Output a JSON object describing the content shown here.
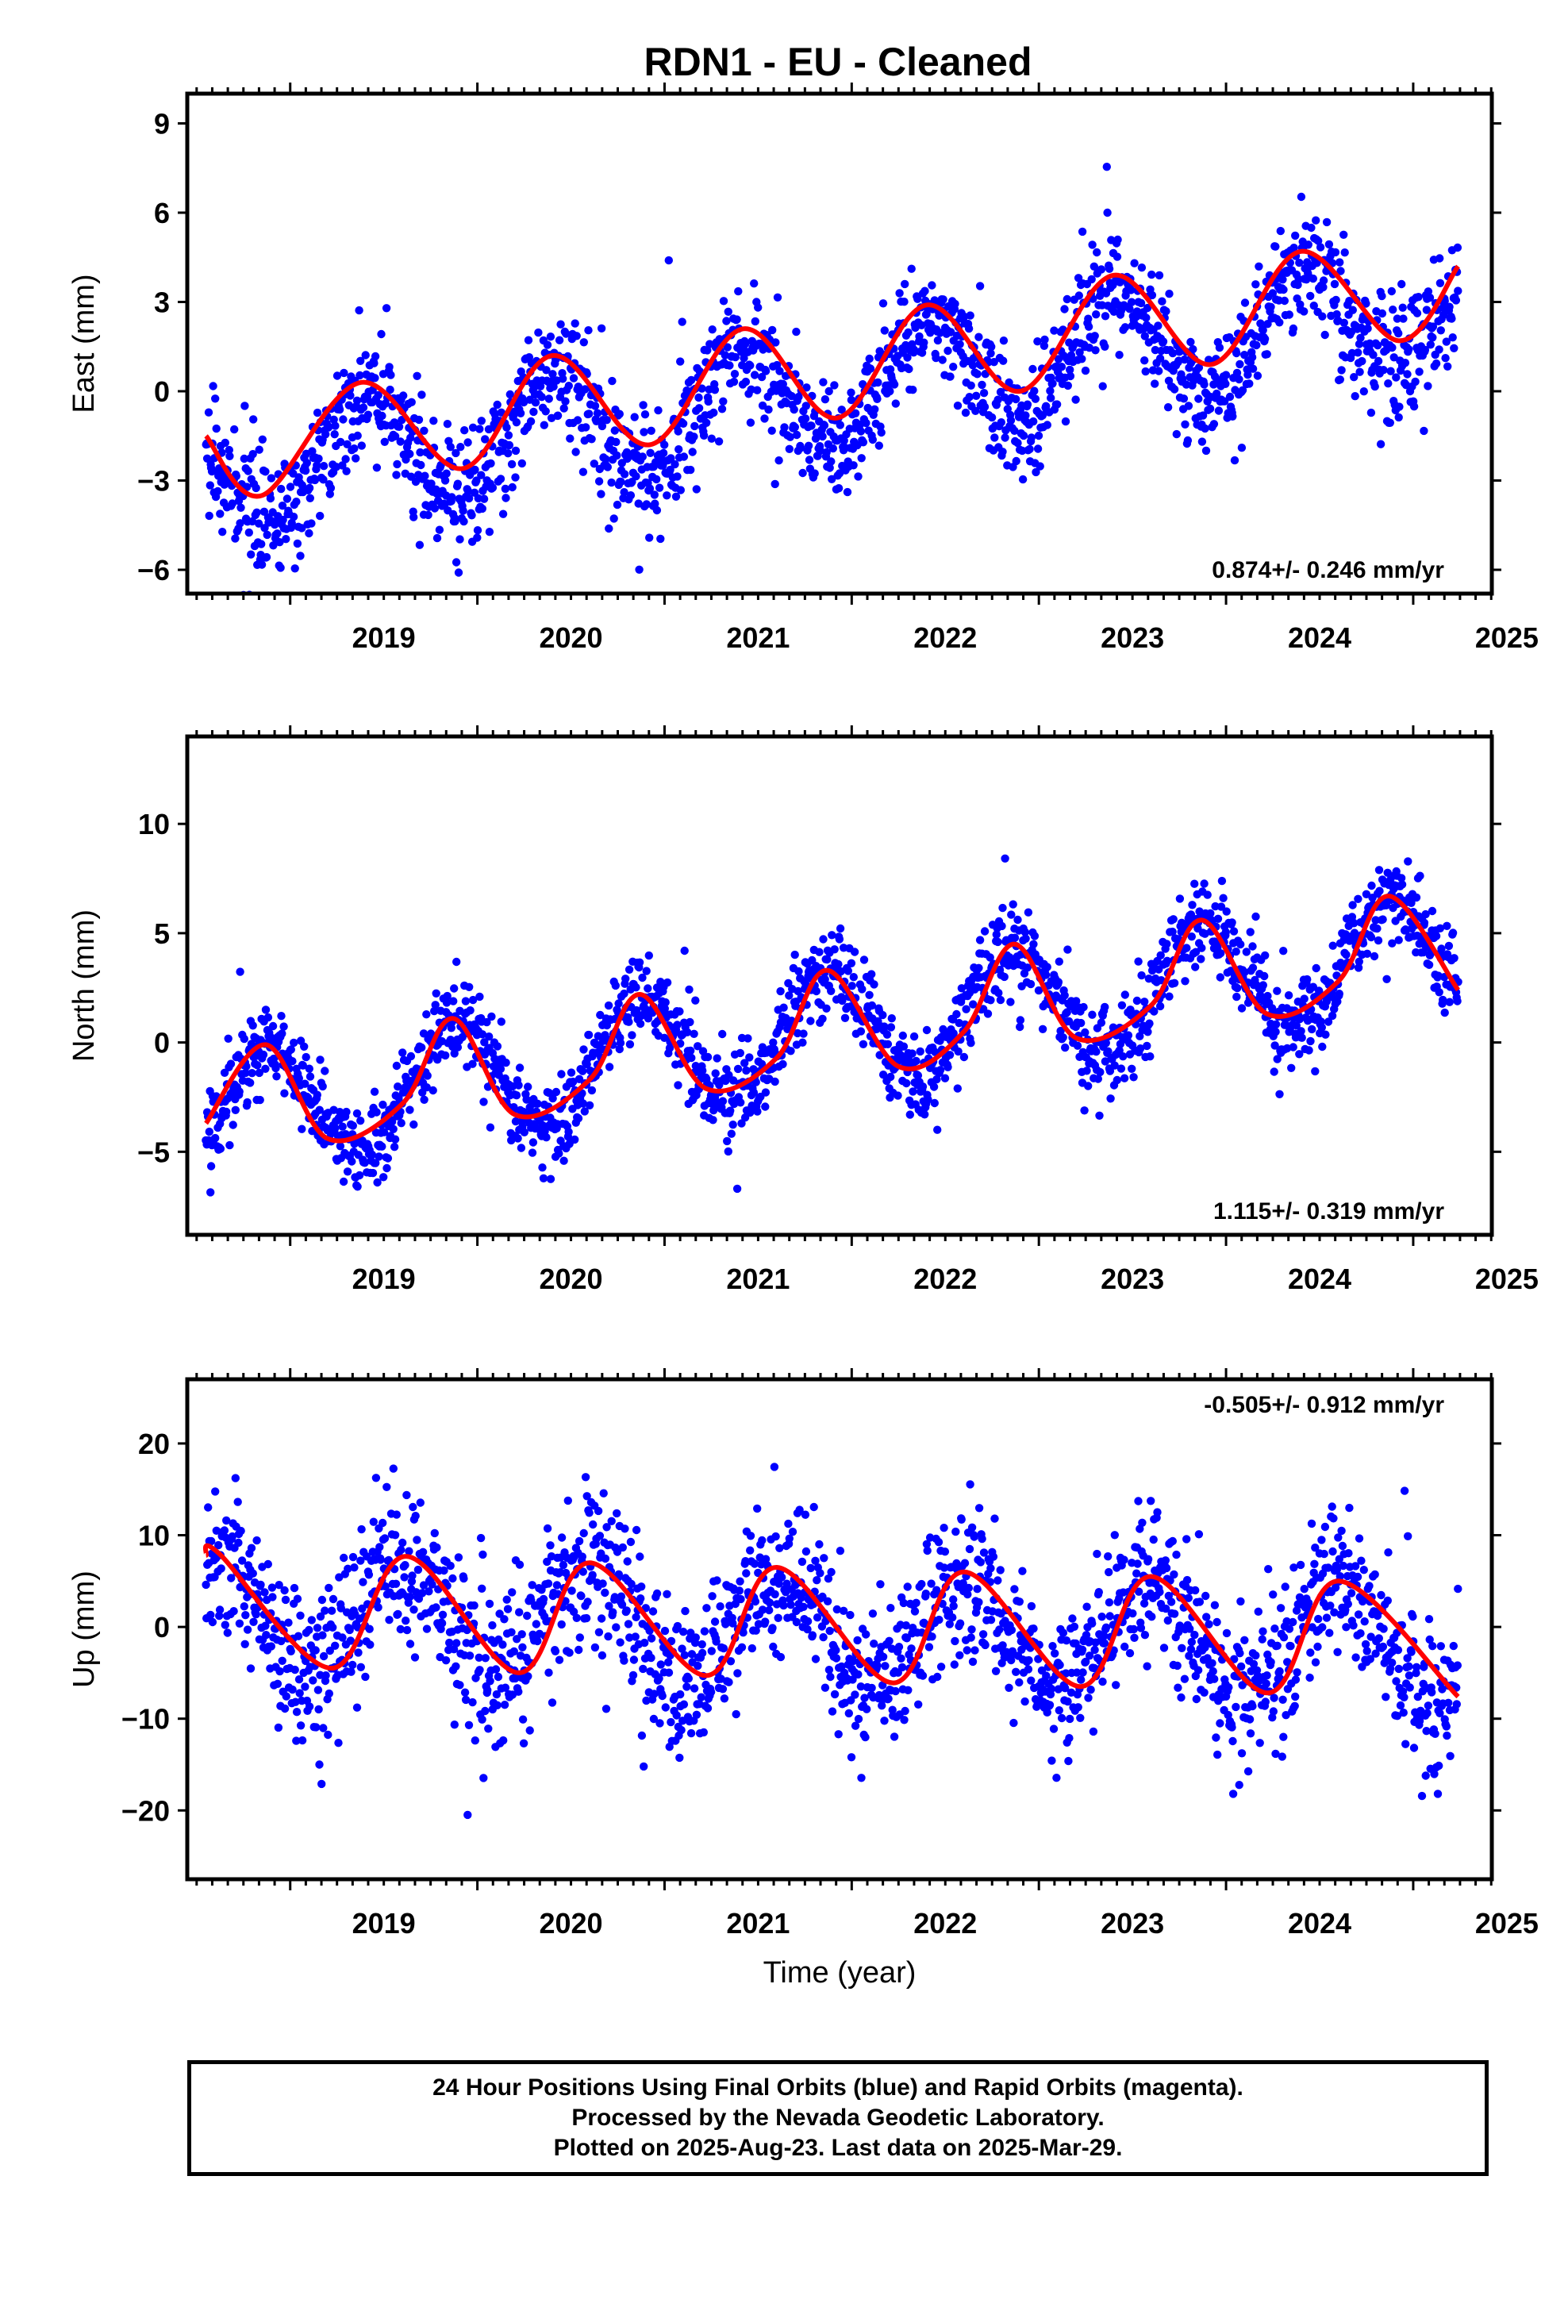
{
  "title": "RDN1  - EU - Cleaned",
  "colors": {
    "final_orbits": "#0000ff",
    "model_fit": "#ff0000",
    "axis": "#000000"
  },
  "footer": {
    "line1": "24 Hour Positions Using Final Orbits (blue) and Rapid Orbits (magenta).",
    "line2": "Processed by the Nevada Geodetic Laboratory.",
    "line3": "Plotted on 2025-Aug-23. Last data on 2025-Mar-29."
  },
  "chart_data": [
    {
      "type": "scatter",
      "ylabel": "East (mm)",
      "xlabel": "",
      "rate": "0.874+/- 0.246 mm/yr",
      "rate_position": "bottom-right",
      "xlim": [
        2018.45,
        2025.42
      ],
      "ylim": [
        -6.8,
        10.0
      ],
      "xticks": [
        2019,
        2020,
        2021,
        2022,
        2023,
        2024,
        2025
      ],
      "yticks": [
        -6,
        -3,
        0,
        3,
        6,
        9
      ],
      "grid": false,
      "series": [
        {
          "kind": "scatter",
          "color": "#0000ff",
          "trend_start": -2.9,
          "trend_rate": 0.874,
          "annual_amplitude": 1.9,
          "annual_phase": 2019.4,
          "scatter_sd": 1.0,
          "n_points": 1900,
          "date_range": [
            2018.55,
            2025.24
          ]
        },
        {
          "kind": "line",
          "color": "#ff0000",
          "x": [
            2018.55,
            2018.85,
            2019.38,
            2019.92,
            2020.4,
            2020.92,
            2021.42,
            2021.92,
            2022.4,
            2022.9,
            2023.4,
            2023.92,
            2024.4,
            2024.92,
            2025.24
          ],
          "y": [
            -1.5,
            -3.5,
            0.3,
            -2.6,
            1.2,
            -1.8,
            2.1,
            -0.9,
            2.9,
            0.0,
            3.9,
            0.9,
            4.7,
            1.7,
            4.2
          ]
        }
      ]
    },
    {
      "type": "scatter",
      "ylabel": "North (mm)",
      "xlabel": "",
      "rate": "1.115+/- 0.319 mm/yr",
      "rate_position": "bottom-right",
      "xlim": [
        2018.45,
        2025.42
      ],
      "ylim": [
        -8.8,
        14.0
      ],
      "xticks": [
        2019,
        2020,
        2021,
        2022,
        2023,
        2024,
        2025
      ],
      "yticks": [
        -5,
        0,
        5,
        10
      ],
      "grid": false,
      "series": [
        {
          "kind": "scatter",
          "color": "#0000ff",
          "trend_start": -3.2,
          "trend_rate": 1.115,
          "annual_amplitude": 2.6,
          "annual_phase": 2018.87,
          "scatter_sd": 1.0,
          "n_points": 1900,
          "date_range": [
            2018.55,
            2025.24
          ]
        },
        {
          "kind": "line",
          "color": "#ff0000",
          "x": [
            2018.55,
            2018.87,
            2019.2,
            2019.6,
            2019.87,
            2020.2,
            2020.6,
            2020.87,
            2021.22,
            2021.6,
            2021.87,
            2022.25,
            2022.6,
            2022.87,
            2023.2,
            2023.6,
            2023.87,
            2024.22,
            2024.6,
            2024.87,
            2025.24
          ],
          "y": [
            -3.7,
            -0.1,
            -4.4,
            -2.8,
            1.1,
            -3.3,
            -1.7,
            2.2,
            -2.1,
            -0.7,
            3.3,
            -1.1,
            0.5,
            4.5,
            0.2,
            1.7,
            5.6,
            1.3,
            2.8,
            6.7,
            2.4
          ]
        }
      ]
    },
    {
      "type": "scatter",
      "ylabel": "Up (mm)",
      "xlabel": "Time (year)",
      "rate": "-0.505+/- 0.912 mm/yr",
      "rate_position": "top-right",
      "xlim": [
        2018.45,
        2025.42
      ],
      "ylim": [
        -27.5,
        27.0
      ],
      "xticks": [
        2019,
        2020,
        2021,
        2022,
        2023,
        2024,
        2025
      ],
      "yticks": [
        -20,
        -10,
        0,
        10,
        20
      ],
      "grid": false,
      "series": [
        {
          "kind": "scatter",
          "color": "#0000ff",
          "trend_start": 1.5,
          "trend_rate": -0.505,
          "annual_amplitude": 6.0,
          "annual_phase": 2019.6,
          "scatter_sd": 4.2,
          "n_points": 1900,
          "date_range": [
            2018.55,
            2025.24
          ]
        },
        {
          "kind": "line",
          "color": "#ff0000",
          "x": [
            2018.55,
            2018.62,
            2019.22,
            2019.62,
            2020.22,
            2020.6,
            2021.22,
            2021.6,
            2022.22,
            2022.6,
            2023.22,
            2023.6,
            2024.22,
            2024.6,
            2025.24
          ],
          "y": [
            7.8,
            8.0,
            -4.5,
            7.7,
            -5.0,
            7.0,
            -5.3,
            6.5,
            -6.1,
            6.0,
            -6.5,
            5.5,
            -7.2,
            5.0,
            -7.6
          ]
        }
      ]
    }
  ]
}
